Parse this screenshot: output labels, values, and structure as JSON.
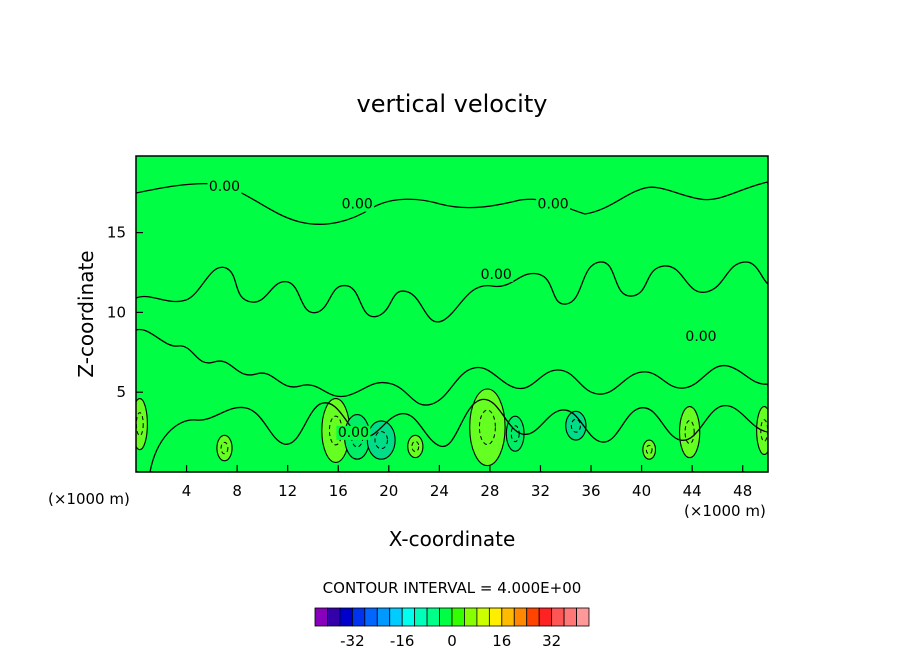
{
  "chart_data": {
    "type": "contour",
    "title": "vertical velocity",
    "xlabel": "X-coordinate",
    "ylabel": "Z-coordinate",
    "x_unit": "(×1000 m)",
    "y_unit": "(×1000 m)",
    "xlim": [
      0,
      50
    ],
    "ylim": [
      0,
      19.8
    ],
    "x_ticks": [
      4,
      8,
      12,
      16,
      20,
      24,
      28,
      32,
      36,
      40,
      44,
      48
    ],
    "y_ticks": [
      5,
      10,
      15
    ],
    "contour_interval_text": "CONTOUR INTERVAL = 4.000E+00",
    "contour_interval": 4,
    "zero_contour_label": "0.00",
    "zero_label_positions": [
      [
        7.0,
        17.6
      ],
      [
        17.5,
        16.5
      ],
      [
        33.0,
        16.5
      ],
      [
        28.5,
        12.1
      ],
      [
        44.7,
        8.2
      ],
      [
        17.2,
        2.2
      ]
    ],
    "background_color": "#00ff44",
    "anomalies": [
      {
        "x": 0.3,
        "z": 3.0,
        "rx": 0.6,
        "rz": 1.6,
        "color": "#66ff22"
      },
      {
        "x": 7.0,
        "z": 1.5,
        "rx": 0.6,
        "rz": 0.8,
        "color": "#66ff22"
      },
      {
        "x": 15.8,
        "z": 2.6,
        "rx": 1.1,
        "rz": 2.0,
        "color": "#66ff22"
      },
      {
        "x": 17.5,
        "z": 2.2,
        "rx": 1.0,
        "rz": 1.4,
        "color": "#00ee66"
      },
      {
        "x": 19.4,
        "z": 2.0,
        "rx": 1.1,
        "rz": 1.2,
        "color": "#00dd88"
      },
      {
        "x": 22.1,
        "z": 1.6,
        "rx": 0.6,
        "rz": 0.7,
        "color": "#66ff22"
      },
      {
        "x": 27.8,
        "z": 2.8,
        "rx": 1.4,
        "rz": 2.4,
        "color": "#66ff22"
      },
      {
        "x": 30.0,
        "z": 2.4,
        "rx": 0.7,
        "rz": 1.1,
        "color": "#00ee66"
      },
      {
        "x": 34.8,
        "z": 2.9,
        "rx": 0.8,
        "rz": 0.9,
        "color": "#00dd88"
      },
      {
        "x": 40.6,
        "z": 1.4,
        "rx": 0.5,
        "rz": 0.6,
        "color": "#66ff22"
      },
      {
        "x": 43.8,
        "z": 2.5,
        "rx": 0.8,
        "rz": 1.6,
        "color": "#66ff22"
      },
      {
        "x": 49.7,
        "z": 2.6,
        "rx": 0.6,
        "rz": 1.5,
        "color": "#66ff22"
      }
    ],
    "colorbar": {
      "colors": [
        "#8800bb",
        "#3300aa",
        "#0000cc",
        "#0033ee",
        "#0066ff",
        "#0099ff",
        "#00ccff",
        "#00ffee",
        "#00ffbb",
        "#00ff88",
        "#00ff44",
        "#33ff00",
        "#88ff00",
        "#ccff00",
        "#ffee00",
        "#ffbb00",
        "#ff8800",
        "#ff4400",
        "#ff2222",
        "#ff5555",
        "#ff7777",
        "#ff9999"
      ],
      "tick_labels": [
        "-32",
        "-16",
        "0",
        "16",
        "32"
      ],
      "tick_values": [
        -32,
        -16,
        0,
        16,
        32
      ],
      "min": -44,
      "max": 44
    }
  }
}
